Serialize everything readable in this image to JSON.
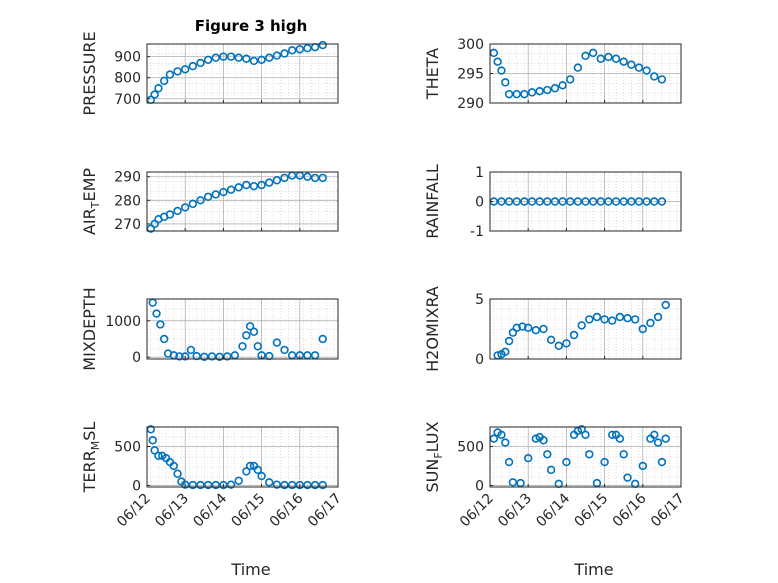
{
  "figure": {
    "title": "Figure 3 high",
    "xlabel": "Time",
    "x_ticks": [
      "06/12",
      "06/13",
      "06/14",
      "06/15",
      "06/16",
      "06/17"
    ]
  },
  "colors": {
    "marker": "#0072BD",
    "axis": "#262626",
    "grid": "#b0b0b0",
    "background": "#ffffff"
  },
  "chart_data": [
    {
      "type": "scatter",
      "ylabel": "PRESSURE",
      "xlim": [
        0,
        5
      ],
      "ylim": [
        680,
        960
      ],
      "yticks": [
        700,
        800,
        900
      ],
      "grid": true,
      "title": "Figure 3 high",
      "x": [
        0.1,
        0.2,
        0.3,
        0.45,
        0.6,
        0.8,
        1.0,
        1.2,
        1.4,
        1.6,
        1.8,
        2.0,
        2.2,
        2.4,
        2.6,
        2.8,
        3.0,
        3.2,
        3.4,
        3.6,
        3.8,
        4.0,
        4.2,
        4.4,
        4.6
      ],
      "y": [
        695,
        720,
        750,
        785,
        815,
        830,
        840,
        855,
        870,
        885,
        895,
        900,
        900,
        895,
        890,
        880,
        885,
        895,
        905,
        915,
        930,
        935,
        940,
        945,
        955
      ]
    },
    {
      "type": "scatter",
      "ylabel": "THETA",
      "xlim": [
        0,
        5
      ],
      "ylim": [
        290,
        300
      ],
      "yticks": [
        290,
        295,
        300
      ],
      "grid": true,
      "x": [
        0.1,
        0.2,
        0.3,
        0.4,
        0.5,
        0.7,
        0.9,
        1.1,
        1.3,
        1.5,
        1.7,
        1.9,
        2.1,
        2.3,
        2.5,
        2.7,
        2.9,
        3.1,
        3.3,
        3.5,
        3.7,
        3.9,
        4.1,
        4.3,
        4.5
      ],
      "y": [
        298.5,
        297,
        295.5,
        293.5,
        291.5,
        291.5,
        291.5,
        291.8,
        292,
        292.2,
        292.5,
        293,
        294,
        296,
        298,
        298.5,
        297.5,
        297.8,
        297.5,
        297,
        296.5,
        296,
        295.5,
        294.5,
        294
      ]
    },
    {
      "type": "scatter",
      "ylabel": "AIR_TEMP",
      "xlim": [
        0,
        5
      ],
      "ylim": [
        267,
        292
      ],
      "yticks": [
        270,
        280,
        290
      ],
      "grid": true,
      "x": [
        0.1,
        0.2,
        0.3,
        0.45,
        0.6,
        0.8,
        1.0,
        1.2,
        1.4,
        1.6,
        1.8,
        2.0,
        2.2,
        2.4,
        2.6,
        2.8,
        3.0,
        3.2,
        3.4,
        3.6,
        3.8,
        4.0,
        4.2,
        4.4,
        4.6
      ],
      "y": [
        268,
        270,
        272,
        273,
        274,
        275.5,
        277,
        278.5,
        280,
        281.5,
        282.5,
        283.5,
        284.5,
        285.5,
        286.5,
        286,
        286.5,
        287.5,
        288.5,
        289.5,
        290.5,
        290.5,
        290,
        289.5,
        289.5
      ]
    },
    {
      "type": "scatter",
      "ylabel": "RAINFALL",
      "xlim": [
        0,
        5
      ],
      "ylim": [
        -1,
        1
      ],
      "yticks": [
        -1,
        0,
        1
      ],
      "grid": true,
      "x": [
        0.1,
        0.3,
        0.5,
        0.7,
        0.9,
        1.1,
        1.3,
        1.5,
        1.7,
        1.9,
        2.1,
        2.3,
        2.5,
        2.7,
        2.9,
        3.1,
        3.3,
        3.5,
        3.7,
        3.9,
        4.1,
        4.3,
        4.5
      ],
      "y": [
        0,
        0,
        0,
        0,
        0,
        0,
        0,
        0,
        0,
        0,
        0,
        0,
        0,
        0,
        0,
        0,
        0,
        0,
        0,
        0,
        0,
        0,
        0
      ]
    },
    {
      "type": "scatter",
      "ylabel": "MIXDEPTH",
      "xlim": [
        0,
        5
      ],
      "ylim": [
        -50,
        1600
      ],
      "yticks": [
        0,
        1000
      ],
      "grid": true,
      "x": [
        0.15,
        0.25,
        0.35,
        0.45,
        0.55,
        0.7,
        0.85,
        1.0,
        1.15,
        1.3,
        1.5,
        1.7,
        1.9,
        2.1,
        2.3,
        2.5,
        2.6,
        2.7,
        2.8,
        2.9,
        3.0,
        3.2,
        3.4,
        3.6,
        3.8,
        4.0,
        4.2,
        4.4,
        4.6
      ],
      "y": [
        1500,
        1200,
        900,
        500,
        100,
        50,
        20,
        20,
        200,
        30,
        10,
        20,
        10,
        20,
        50,
        300,
        600,
        850,
        700,
        300,
        50,
        30,
        400,
        200,
        50,
        50,
        50,
        50,
        500
      ]
    },
    {
      "type": "scatter",
      "ylabel": "H2OMIXRA",
      "xlim": [
        0,
        5
      ],
      "ylim": [
        0,
        5
      ],
      "yticks": [
        0,
        5
      ],
      "grid": true,
      "x": [
        0.2,
        0.3,
        0.4,
        0.5,
        0.6,
        0.7,
        0.85,
        1.0,
        1.2,
        1.4,
        1.6,
        1.8,
        2.0,
        2.2,
        2.4,
        2.6,
        2.8,
        3.0,
        3.2,
        3.4,
        3.6,
        3.8,
        4.0,
        4.2,
        4.4,
        4.6
      ],
      "y": [
        0.3,
        0.4,
        0.6,
        1.5,
        2.2,
        2.6,
        2.7,
        2.6,
        2.4,
        2.5,
        1.6,
        1.1,
        1.3,
        2.0,
        2.8,
        3.3,
        3.5,
        3.3,
        3.2,
        3.5,
        3.4,
        3.3,
        2.5,
        3.0,
        3.5,
        4.5
      ]
    },
    {
      "type": "scatter",
      "ylabel": "TERR_MSL",
      "xlim": [
        0,
        5
      ],
      "ylim": [
        -20,
        750
      ],
      "yticks": [
        0,
        500
      ],
      "grid": true,
      "x": [
        0.1,
        0.15,
        0.2,
        0.3,
        0.4,
        0.5,
        0.6,
        0.7,
        0.8,
        0.9,
        1.0,
        1.2,
        1.4,
        1.6,
        1.8,
        2.0,
        2.2,
        2.4,
        2.6,
        2.7,
        2.8,
        2.9,
        3.0,
        3.2,
        3.4,
        3.6,
        3.8,
        4.0,
        4.2,
        4.4,
        4.6
      ],
      "y": [
        720,
        580,
        450,
        380,
        380,
        350,
        300,
        250,
        150,
        50,
        10,
        5,
        5,
        5,
        5,
        5,
        10,
        60,
        180,
        250,
        250,
        200,
        120,
        40,
        10,
        5,
        5,
        5,
        5,
        5,
        5
      ]
    },
    {
      "type": "scatter",
      "ylabel": "SUN_FLUX",
      "xlim": [
        0,
        5
      ],
      "ylim": [
        -20,
        750
      ],
      "yticks": [
        0,
        500
      ],
      "grid": true,
      "x": [
        0.1,
        0.2,
        0.3,
        0.4,
        0.5,
        0.6,
        0.8,
        1.0,
        1.2,
        1.3,
        1.4,
        1.5,
        1.6,
        1.8,
        2.0,
        2.2,
        2.3,
        2.4,
        2.5,
        2.6,
        2.8,
        3.0,
        3.2,
        3.3,
        3.4,
        3.5,
        3.6,
        3.8,
        4.0,
        4.2,
        4.3,
        4.4,
        4.5,
        4.6
      ],
      "y": [
        600,
        680,
        650,
        550,
        300,
        40,
        30,
        350,
        600,
        620,
        580,
        400,
        200,
        20,
        300,
        650,
        700,
        720,
        650,
        400,
        30,
        300,
        650,
        650,
        600,
        400,
        100,
        20,
        250,
        600,
        650,
        550,
        300,
        600
      ]
    }
  ]
}
